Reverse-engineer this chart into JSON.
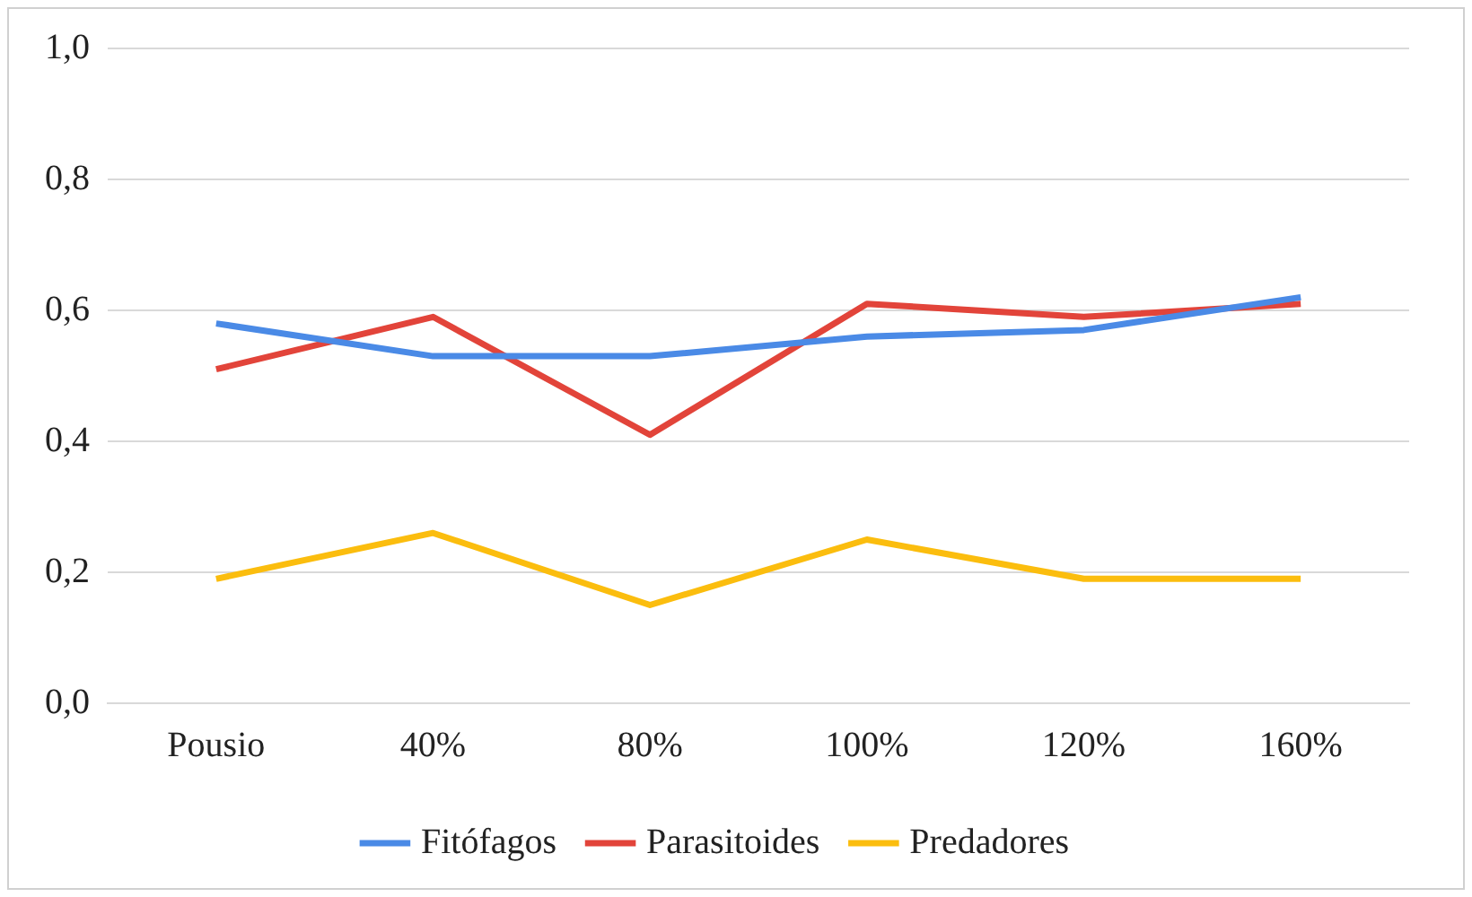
{
  "chart_data": {
    "type": "line",
    "categories": [
      "Pousio",
      "40%",
      "80%",
      "100%",
      "120%",
      "160%"
    ],
    "series": [
      {
        "name": "Fitófagos",
        "color": "#4a8ae6",
        "values": [
          0.58,
          0.53,
          0.53,
          0.56,
          0.57,
          0.62
        ]
      },
      {
        "name": "Parasitoides",
        "color": "#e2443a",
        "values": [
          0.51,
          0.59,
          0.41,
          0.61,
          0.59,
          0.61
        ]
      },
      {
        "name": "Predadores",
        "color": "#fbbd0e",
        "values": [
          0.19,
          0.26,
          0.15,
          0.25,
          0.19,
          0.19
        ]
      }
    ],
    "ylim": [
      0,
      1
    ],
    "yticks": [
      {
        "value": 0,
        "label": "0,0"
      },
      {
        "value": 0.2,
        "label": "0,2"
      },
      {
        "value": 0.4,
        "label": "0,4"
      },
      {
        "value": 0.6,
        "label": "0,6"
      },
      {
        "value": 0.8,
        "label": "0,8"
      },
      {
        "value": 1,
        "label": "1,0"
      }
    ],
    "grid": "y",
    "legend": "bottom",
    "marker": "none",
    "line_style": "solid"
  }
}
